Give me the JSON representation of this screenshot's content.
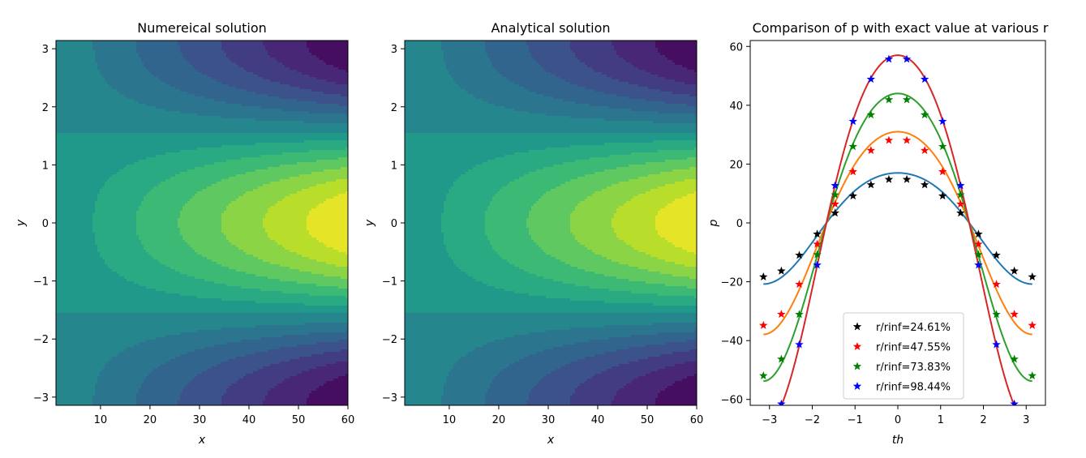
{
  "chart_data": [
    {
      "type": "heatmap",
      "title": "Numereical solution",
      "xlabel": "x",
      "ylabel": "y",
      "xlim": [
        1,
        60
      ],
      "ylim": [
        -3.1416,
        3.1416
      ],
      "xticks": [
        10,
        20,
        30,
        40,
        50,
        60
      ],
      "yticks": [
        -3,
        -2,
        -1,
        0,
        1,
        2,
        3
      ],
      "colormap": "viridis",
      "levels": 14,
      "grid": false
    },
    {
      "type": "heatmap",
      "title": "Analytical solution",
      "xlabel": "x",
      "ylabel": "y",
      "xlim": [
        1,
        60
      ],
      "ylim": [
        -3.1416,
        3.1416
      ],
      "xticks": [
        10,
        20,
        30,
        40,
        50,
        60
      ],
      "yticks": [
        -3,
        -2,
        -1,
        0,
        1,
        2,
        3
      ],
      "colormap": "viridis",
      "levels": 14,
      "grid": false
    },
    {
      "type": "line",
      "title": "Comparison of p with exact value  at various r",
      "xlabel": "th",
      "ylabel": "p",
      "xlim": [
        -3.45,
        3.45
      ],
      "ylim": [
        -62,
        62
      ],
      "xticks": [
        -3,
        -2,
        -1,
        0,
        1,
        2,
        3
      ],
      "yticks": [
        -60,
        -40,
        -20,
        0,
        20,
        40,
        60
      ],
      "grid": false,
      "legend_position": "lower-center",
      "exact_series": [
        {
          "amplitude": 17,
          "color": "#1f77b4"
        },
        {
          "amplitude": 31,
          "color": "#ff7f0e"
        },
        {
          "amplitude": 44,
          "color": "#2ca02c"
        },
        {
          "amplitude": 57,
          "color": "#d62728"
        }
      ],
      "markers_x": [
        -3.1416,
        -2.7227,
        -2.3038,
        -1.885,
        -1.4661,
        -1.0472,
        -0.6283,
        -0.2094,
        0.2094,
        0.6283,
        1.0472,
        1.4661,
        1.885,
        2.3038,
        2.7227,
        3.1416
      ],
      "series": [
        {
          "name": "r/rinf=24.61%",
          "color": "#000000",
          "amplitude": 15
        },
        {
          "name": "r/rinf=47.55%",
          "color": "#ff0000",
          "amplitude": 28.5
        },
        {
          "name": "r/rinf=73.83%",
          "color": "#008000",
          "amplitude": 42.5
        },
        {
          "name": "r/rinf=98.44%",
          "color": "#0000ff",
          "amplitude": 56.5
        }
      ]
    }
  ]
}
